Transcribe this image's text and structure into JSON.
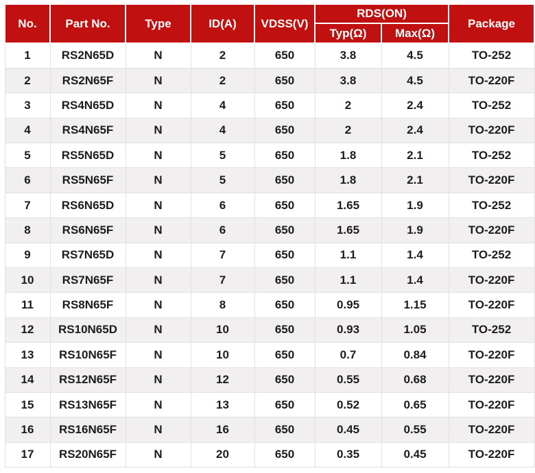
{
  "table": {
    "title": "power-mosfet-selection-table",
    "colors": {
      "header_bg": "#c01010",
      "header_text": "#ffffff",
      "row_bg": "#ffffff",
      "row_alt_bg": "#f1efef",
      "border": "#e2e0e0",
      "text": "#1c1c1c"
    },
    "header": {
      "no": "No.",
      "part_no": "Part No.",
      "type": "Type",
      "id_a": "ID(A)",
      "vdss": "VDSS(V)",
      "rds_on": "RDS(ON)",
      "typ": "Typ(Ω)",
      "max": "Max(Ω)",
      "package": "Package"
    },
    "row_keys": [
      "no",
      "part_no",
      "type",
      "id_a",
      "vdss",
      "typ",
      "max",
      "package"
    ],
    "rows": [
      {
        "no": "1",
        "part_no": "RS2N65D",
        "type": "N",
        "id_a": "2",
        "vdss": "650",
        "typ": "3.8",
        "max": "4.5",
        "package": "TO-252"
      },
      {
        "no": "2",
        "part_no": "RS2N65F",
        "type": "N",
        "id_a": "2",
        "vdss": "650",
        "typ": "3.8",
        "max": "4.5",
        "package": "TO-220F"
      },
      {
        "no": "3",
        "part_no": "RS4N65D",
        "type": "N",
        "id_a": "4",
        "vdss": "650",
        "typ": "2",
        "max": "2.4",
        "package": "TO-252"
      },
      {
        "no": "4",
        "part_no": "RS4N65F",
        "type": "N",
        "id_a": "4",
        "vdss": "650",
        "typ": "2",
        "max": "2.4",
        "package": "TO-220F"
      },
      {
        "no": "5",
        "part_no": "RS5N65D",
        "type": "N",
        "id_a": "5",
        "vdss": "650",
        "typ": "1.8",
        "max": "2.1",
        "package": "TO-252"
      },
      {
        "no": "6",
        "part_no": "RS5N65F",
        "type": "N",
        "id_a": "5",
        "vdss": "650",
        "typ": "1.8",
        "max": "2.1",
        "package": "TO-220F"
      },
      {
        "no": "7",
        "part_no": "RS6N65D",
        "type": "N",
        "id_a": "6",
        "vdss": "650",
        "typ": "1.65",
        "max": "1.9",
        "package": "TO-252"
      },
      {
        "no": "8",
        "part_no": "RS6N65F",
        "type": "N",
        "id_a": "6",
        "vdss": "650",
        "typ": "1.65",
        "max": "1.9",
        "package": "TO-220F"
      },
      {
        "no": "9",
        "part_no": "RS7N65D",
        "type": "N",
        "id_a": "7",
        "vdss": "650",
        "typ": "1.1",
        "max": "1.4",
        "package": "TO-252"
      },
      {
        "no": "10",
        "part_no": "RS7N65F",
        "type": "N",
        "id_a": "7",
        "vdss": "650",
        "typ": "1.1",
        "max": "1.4",
        "package": "TO-220F"
      },
      {
        "no": "11",
        "part_no": "RS8N65F",
        "type": "N",
        "id_a": "8",
        "vdss": "650",
        "typ": "0.95",
        "max": "1.15",
        "package": "TO-220F"
      },
      {
        "no": "12",
        "part_no": "RS10N65D",
        "type": "N",
        "id_a": "10",
        "vdss": "650",
        "typ": "0.93",
        "max": "1.05",
        "package": "TO-252"
      },
      {
        "no": "13",
        "part_no": "RS10N65F",
        "type": "N",
        "id_a": "10",
        "vdss": "650",
        "typ": "0.7",
        "max": "0.84",
        "package": "TO-220F"
      },
      {
        "no": "14",
        "part_no": "RS12N65F",
        "type": "N",
        "id_a": "12",
        "vdss": "650",
        "typ": "0.55",
        "max": "0.68",
        "package": "TO-220F"
      },
      {
        "no": "15",
        "part_no": "RS13N65F",
        "type": "N",
        "id_a": "13",
        "vdss": "650",
        "typ": "0.52",
        "max": "0.65",
        "package": "TO-220F"
      },
      {
        "no": "16",
        "part_no": "RS16N65F",
        "type": "N",
        "id_a": "16",
        "vdss": "650",
        "typ": "0.45",
        "max": "0.55",
        "package": "TO-220F"
      },
      {
        "no": "17",
        "part_no": "RS20N65F",
        "type": "N",
        "id_a": "20",
        "vdss": "650",
        "typ": "0.35",
        "max": "0.45",
        "package": "TO-220F"
      }
    ]
  }
}
